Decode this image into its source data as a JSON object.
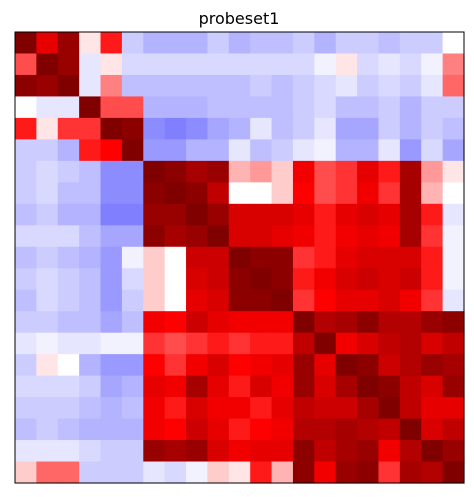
{
  "chart_data": {
    "type": "heatmap",
    "title": "probeset1",
    "xlabel": "",
    "ylabel": "",
    "colormap": "bwr",
    "vmin": -1,
    "vmax": 1,
    "grid": false,
    "axis_ticks": "off",
    "n_rows": 21,
    "n_cols": 21,
    "values": [
      [
        1.0,
        0.6,
        0.9,
        0.05,
        0.45,
        -0.2,
        -0.3,
        -0.3,
        -0.3,
        -0.2,
        -0.3,
        -0.25,
        -0.25,
        -0.2,
        -0.3,
        -0.2,
        -0.2,
        -0.25,
        -0.2,
        -0.2,
        0.0
      ],
      [
        0.35,
        1.0,
        0.9,
        -0.1,
        0.05,
        -0.15,
        -0.15,
        -0.15,
        -0.15,
        -0.15,
        -0.15,
        -0.15,
        -0.15,
        -0.15,
        -0.05,
        0.05,
        -0.15,
        -0.1,
        -0.15,
        -0.05,
        0.25
      ],
      [
        0.95,
        0.9,
        1.0,
        -0.1,
        0.25,
        -0.25,
        -0.25,
        -0.25,
        -0.25,
        -0.25,
        -0.25,
        -0.2,
        -0.25,
        -0.2,
        -0.15,
        -0.1,
        -0.2,
        -0.15,
        -0.2,
        -0.1,
        0.3
      ],
      [
        0.0,
        -0.1,
        -0.1,
        1.0,
        0.35,
        0.35,
        -0.3,
        -0.3,
        -0.3,
        -0.25,
        -0.25,
        -0.25,
        -0.25,
        -0.2,
        -0.15,
        -0.25,
        -0.25,
        -0.2,
        -0.3,
        -0.2,
        -0.2
      ],
      [
        0.45,
        0.05,
        0.4,
        0.4,
        1.0,
        0.95,
        -0.45,
        -0.5,
        -0.45,
        -0.35,
        -0.3,
        -0.1,
        -0.25,
        -0.2,
        -0.1,
        -0.35,
        -0.35,
        -0.2,
        -0.3,
        -0.2,
        -0.25
      ],
      [
        -0.2,
        -0.2,
        -0.3,
        0.45,
        0.5,
        1.0,
        -0.4,
        -0.4,
        -0.3,
        -0.3,
        -0.1,
        -0.25,
        -0.2,
        -0.1,
        -0.05,
        -0.3,
        -0.3,
        -0.1,
        -0.4,
        -0.15,
        -0.35
      ],
      [
        -0.2,
        -0.15,
        -0.2,
        -0.25,
        -0.45,
        -0.45,
        1.0,
        0.95,
        0.85,
        0.9,
        0.15,
        0.2,
        0.1,
        0.55,
        0.35,
        0.4,
        0.6,
        0.45,
        0.85,
        0.2,
        0.05
      ],
      [
        -0.2,
        -0.15,
        -0.25,
        -0.25,
        -0.45,
        -0.45,
        0.95,
        1.0,
        0.95,
        0.75,
        0.0,
        0.0,
        0.1,
        0.5,
        0.35,
        0.4,
        0.55,
        0.4,
        0.85,
        0.15,
        0.0
      ],
      [
        -0.25,
        -0.2,
        -0.3,
        -0.3,
        -0.5,
        -0.5,
        0.9,
        0.9,
        1.0,
        0.9,
        0.65,
        0.65,
        0.65,
        0.6,
        0.45,
        0.6,
        0.65,
        0.6,
        0.85,
        0.45,
        -0.1
      ],
      [
        -0.15,
        -0.15,
        -0.15,
        -0.25,
        -0.35,
        -0.35,
        0.95,
        0.85,
        0.9,
        1.0,
        0.65,
        0.65,
        0.6,
        0.55,
        0.45,
        0.55,
        0.6,
        0.55,
        0.85,
        0.4,
        -0.05
      ],
      [
        -0.25,
        -0.2,
        -0.25,
        -0.3,
        -0.4,
        -0.05,
        0.1,
        0.0,
        0.7,
        0.7,
        1.0,
        0.95,
        0.95,
        0.4,
        0.45,
        0.6,
        0.65,
        0.65,
        0.65,
        0.45,
        -0.05
      ],
      [
        -0.2,
        -0.15,
        -0.2,
        -0.25,
        -0.4,
        -0.15,
        0.1,
        0.0,
        0.65,
        0.7,
        0.95,
        1.0,
        0.95,
        0.45,
        0.55,
        0.65,
        0.7,
        0.65,
        0.7,
        0.45,
        -0.05
      ],
      [
        -0.25,
        -0.15,
        -0.2,
        -0.25,
        -0.4,
        -0.2,
        0.1,
        0.0,
        0.6,
        0.65,
        0.95,
        0.95,
        1.0,
        0.4,
        0.5,
        0.6,
        0.6,
        0.65,
        0.55,
        0.4,
        -0.1
      ],
      [
        -0.2,
        -0.2,
        -0.25,
        -0.25,
        -0.35,
        -0.25,
        0.55,
        0.5,
        0.7,
        0.6,
        0.55,
        0.55,
        0.55,
        1.0,
        0.8,
        0.85,
        0.95,
        0.8,
        0.8,
        0.9,
        0.95
      ],
      [
        -0.1,
        -0.05,
        -0.1,
        -0.1,
        -0.05,
        -0.05,
        0.4,
        0.35,
        0.4,
        0.45,
        0.4,
        0.45,
        0.45,
        0.75,
        1.0,
        0.55,
        0.65,
        0.75,
        0.8,
        0.65,
        0.75
      ],
      [
        -0.2,
        0.05,
        0.0,
        -0.3,
        -0.4,
        -0.4,
        0.5,
        0.4,
        0.55,
        0.65,
        0.5,
        0.55,
        0.6,
        0.9,
        0.6,
        1.0,
        0.95,
        0.7,
        0.8,
        0.9,
        0.85
      ],
      [
        -0.15,
        -0.15,
        -0.15,
        -0.2,
        -0.35,
        -0.3,
        0.6,
        0.55,
        0.85,
        0.6,
        0.45,
        0.65,
        0.55,
        0.9,
        0.65,
        0.85,
        1.0,
        0.95,
        0.75,
        0.65,
        0.9
      ],
      [
        -0.2,
        -0.2,
        -0.2,
        -0.25,
        -0.3,
        -0.25,
        0.55,
        0.45,
        0.65,
        0.55,
        0.55,
        0.45,
        0.6,
        0.75,
        0.7,
        0.7,
        0.85,
        1.0,
        0.75,
        0.6,
        0.6
      ],
      [
        -0.25,
        -0.2,
        -0.25,
        -0.3,
        -0.3,
        -0.3,
        0.55,
        0.5,
        0.7,
        0.6,
        0.45,
        0.5,
        0.55,
        0.8,
        0.8,
        0.85,
        0.8,
        0.75,
        1.0,
        0.65,
        0.75
      ],
      [
        -0.1,
        -0.1,
        -0.1,
        -0.15,
        -0.2,
        -0.2,
        0.9,
        0.85,
        0.9,
        0.65,
        0.55,
        0.6,
        0.6,
        0.95,
        0.75,
        0.85,
        0.9,
        0.55,
        0.8,
        1.0,
        0.9
      ],
      [
        0.1,
        0.3,
        0.3,
        -0.2,
        -0.2,
        -0.2,
        -0.1,
        -0.15,
        -0.05,
        0.1,
        0.05,
        0.45,
        0.15,
        0.95,
        0.55,
        0.9,
        0.95,
        0.4,
        0.85,
        0.8,
        1.0
      ]
    ]
  }
}
